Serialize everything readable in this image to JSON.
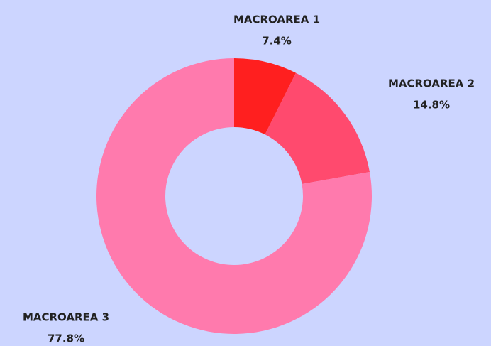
{
  "chart_data": {
    "type": "donut",
    "categories": [
      "MACROAREA 1",
      "MACROAREA 2",
      "MACROAREA 3"
    ],
    "values": [
      7.4,
      14.8,
      77.8
    ],
    "value_labels": [
      "7.4%",
      "14.8%",
      "77.8%"
    ],
    "colors": [
      "#ff1f1f",
      "#ff4a6e",
      "#ff7aad"
    ]
  }
}
